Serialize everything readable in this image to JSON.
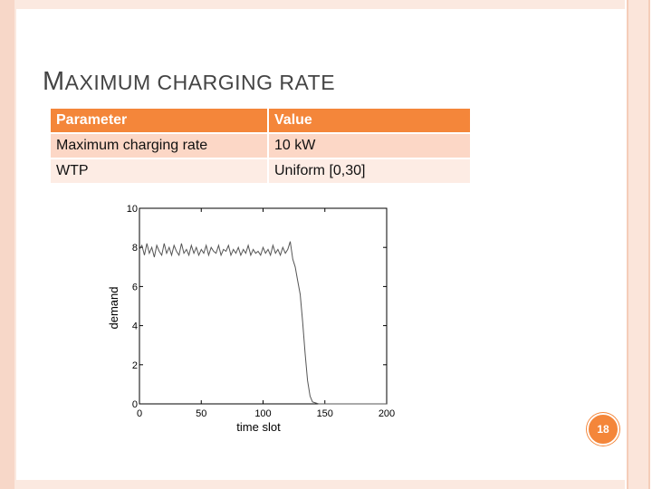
{
  "slide": {
    "title_first": "M",
    "title_rest": "AXIMUM CHARGING RATE",
    "page_number": "18",
    "accent_color": "#f4863a"
  },
  "table": {
    "headers": [
      "Parameter",
      "Value"
    ],
    "rows": [
      [
        "Maximum charging rate",
        "10 kW"
      ],
      [
        "WTP",
        "Uniform [0,30]"
      ]
    ]
  },
  "chart_data": {
    "type": "line",
    "title": "",
    "xlabel": "time slot",
    "ylabel": "demand",
    "xlim": [
      0,
      200
    ],
    "ylim": [
      0,
      10
    ],
    "xticks": [
      0,
      50,
      100,
      150,
      200
    ],
    "yticks": [
      0,
      2,
      4,
      6,
      8,
      10
    ],
    "grid": false,
    "series": [
      {
        "color": "#555555",
        "x": [
          0,
          2,
          4,
          6,
          8,
          10,
          12,
          14,
          16,
          18,
          20,
          22,
          24,
          26,
          28,
          30,
          32,
          34,
          36,
          38,
          40,
          42,
          44,
          46,
          48,
          50,
          52,
          54,
          56,
          58,
          60,
          62,
          64,
          66,
          68,
          70,
          72,
          74,
          76,
          78,
          80,
          82,
          84,
          86,
          88,
          90,
          92,
          94,
          96,
          98,
          100,
          102,
          104,
          106,
          108,
          110,
          112,
          114,
          116,
          118,
          120,
          122,
          124,
          126,
          128,
          130,
          132,
          134,
          136,
          138,
          140,
          145,
          150,
          160,
          170,
          180,
          190,
          200
        ],
        "y": [
          7.9,
          8.1,
          7.6,
          8.2,
          7.7,
          8.0,
          7.5,
          8.1,
          7.8,
          7.6,
          8.2,
          7.7,
          8.0,
          7.6,
          8.1,
          7.8,
          7.6,
          8.2,
          7.7,
          7.9,
          7.6,
          8.1,
          7.7,
          8.0,
          7.6,
          7.9,
          7.7,
          8.1,
          7.6,
          8.0,
          7.8,
          7.7,
          8.1,
          7.6,
          7.9,
          7.8,
          8.1,
          7.6,
          7.9,
          7.7,
          8.0,
          7.6,
          7.9,
          7.7,
          8.1,
          7.6,
          7.9,
          7.7,
          7.8,
          7.6,
          8.0,
          7.7,
          7.9,
          7.6,
          8.1,
          7.7,
          7.9,
          7.6,
          8.0,
          7.7,
          7.9,
          8.3,
          7.4,
          7.0,
          6.3,
          5.6,
          4.2,
          2.6,
          1.2,
          0.4,
          0.1,
          0.0,
          0.0,
          0.0,
          0.0,
          0.0,
          0.0,
          0.0
        ]
      }
    ]
  }
}
